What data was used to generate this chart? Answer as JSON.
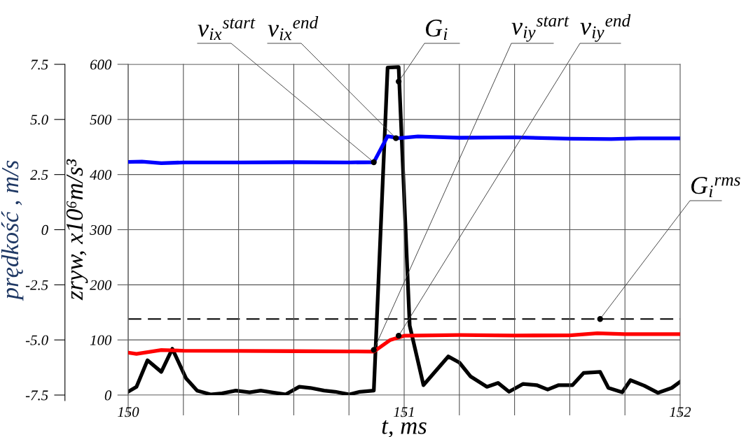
{
  "chart_data": {
    "type": "line",
    "xlabel": "t, ms",
    "ylabel": "prędkość , m/s",
    "y2label": "zryw, x10⁶m/s³",
    "xlim": [
      150,
      152
    ],
    "xticks": [
      150,
      {
        "value": 150.2,
        "label": null
      },
      {
        "value": 150.4,
        "label": null
      },
      {
        "value": 150.6,
        "label": null
      },
      {
        "value": 150.8,
        "label": null
      },
      151,
      {
        "value": 151.2,
        "label": null
      },
      {
        "value": 151.4,
        "label": null
      },
      {
        "value": 151.6,
        "label": null
      },
      {
        "value": 151.8,
        "label": null
      },
      152
    ],
    "ylim": [
      -7.5,
      7.5
    ],
    "yticks": [
      -7.5,
      {
        "value": -5,
        "label": "-5.0"
      },
      -2.5,
      0,
      2.5,
      {
        "value": 5,
        "label": "5.0"
      },
      7.5
    ],
    "y2lim": [
      0,
      600
    ],
    "y2ticks": [
      0,
      100,
      200,
      300,
      400,
      500,
      600
    ],
    "grid": true,
    "legend": false,
    "marker": "none",
    "line_style": "solid",
    "series": [
      {
        "color": "#0000ff",
        "x": [
          150.0,
          150.05,
          150.12,
          150.2,
          150.4,
          150.6,
          150.8,
          150.89,
          150.94,
          150.98,
          151.05,
          151.2,
          151.4,
          151.6,
          151.75,
          151.85,
          152.0
        ],
        "values": [
          3.07,
          3.09,
          3.02,
          3.05,
          3.05,
          3.06,
          3.05,
          3.06,
          4.24,
          4.15,
          4.23,
          4.17,
          4.19,
          4.13,
          4.11,
          4.14,
          4.14
        ]
      },
      {
        "color": "#ff0000",
        "x": [
          150.0,
          150.03,
          150.12,
          150.2,
          150.4,
          150.6,
          150.8,
          150.89,
          150.95,
          151.0,
          151.2,
          151.4,
          151.6,
          151.7,
          151.8,
          152.0
        ],
        "values": [
          -5.58,
          -5.63,
          -5.46,
          -5.49,
          -5.5,
          -5.51,
          -5.52,
          -5.53,
          -5.0,
          -4.81,
          -4.78,
          -4.8,
          -4.79,
          -4.7,
          -4.74,
          -4.74
        ]
      },
      {
        "color": "#000000",
        "axis": "y2",
        "x": [
          150.0,
          150.03,
          150.07,
          150.12,
          150.16,
          150.21,
          150.25,
          150.3,
          150.34,
          150.39,
          150.44,
          150.48,
          150.52,
          150.57,
          150.62,
          150.66,
          150.71,
          150.75,
          150.8,
          150.84,
          150.89,
          150.94,
          150.98,
          151.02,
          151.07,
          151.16,
          151.2,
          151.24,
          151.3,
          151.34,
          151.38,
          151.43,
          151.48,
          151.52,
          151.56,
          151.61,
          151.65,
          151.71,
          151.74,
          151.79,
          151.82,
          151.87,
          151.92,
          151.97,
          152.0
        ],
        "values": [
          6,
          15,
          63,
          42,
          84,
          30,
          8,
          1,
          3,
          8,
          5,
          8,
          5,
          1,
          15,
          13,
          8,
          6,
          1,
          6,
          8,
          594,
          595,
          126,
          18,
          70,
          59,
          34,
          15,
          22,
          6,
          20,
          18,
          10,
          18,
          18,
          40,
          42,
          13,
          5,
          27,
          17,
          4,
          13,
          24
        ]
      }
    ],
    "ref_lines": [
      {
        "axis": "y2",
        "value": 138,
        "label": "G$_{i}$$^{rms}$",
        "color": "#000000",
        "line_style": "dashed"
      }
    ],
    "annotations": [
      {
        "text": "v$_{ix}$$^{start}$",
        "x": 150.89,
        "y": 3.06
      },
      {
        "text": "v$_{ix}$$^{end}$",
        "x": 150.97,
        "y": 4.15
      },
      {
        "text": "G$_{i}$",
        "x": 150.98,
        "y": 6.72
      },
      {
        "text": "v$_{iy}$$^{start}$",
        "x": 150.89,
        "y": -5.45
      },
      {
        "text": "v$_{iy}$$^{end}$",
        "x": 150.98,
        "y": -4.81
      }
    ]
  }
}
